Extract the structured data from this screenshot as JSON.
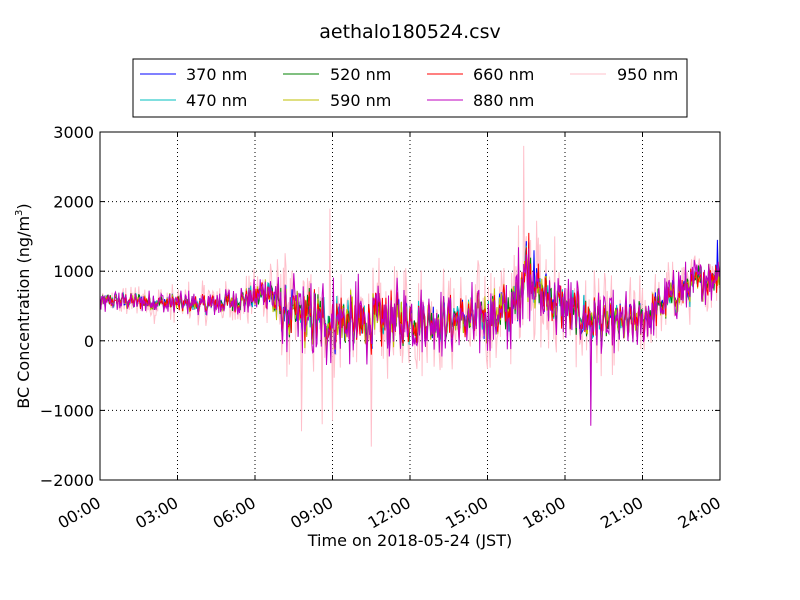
{
  "chart_data": {
    "type": "line",
    "title": "aethalo180524.csv",
    "xlabel": "Time on 2018-05-24 (JST)",
    "ylabel_main": "BC Concentration (ng/m",
    "ylabel_sup": "3",
    "ylabel_close": ")",
    "x_unit": "hours",
    "xlim": [
      0,
      24
    ],
    "ylim": [
      -2000,
      3000
    ],
    "x_ticks": [
      0,
      3,
      6,
      9,
      12,
      15,
      18,
      21,
      24
    ],
    "x_tick_labels": [
      "00:00",
      "03:00",
      "06:00",
      "09:00",
      "12:00",
      "15:00",
      "18:00",
      "21:00",
      "24:00"
    ],
    "y_ticks": [
      -2000,
      -1000,
      0,
      1000,
      2000,
      3000
    ],
    "y_tick_labels": [
      "−2000",
      "−1000",
      "0",
      "1000",
      "2000",
      "3000"
    ],
    "grid": true,
    "legend_placement": "top-center",
    "series": [
      {
        "name": "370 nm",
        "color": "#0000ff"
      },
      {
        "name": "470 nm",
        "color": "#00bfbf"
      },
      {
        "name": "520 nm",
        "color": "#008000"
      },
      {
        "name": "590 nm",
        "color": "#bfbf00"
      },
      {
        "name": "660 nm",
        "color": "#ff0000"
      },
      {
        "name": "880 nm",
        "color": "#bf00bf"
      },
      {
        "name": "950 nm",
        "color": "#ffc0cb"
      }
    ],
    "envelope": {
      "x": [
        0,
        1,
        2,
        3,
        4,
        5,
        6,
        6.5,
        7,
        8,
        9,
        10,
        11,
        12,
        13,
        14,
        15,
        16,
        16.5,
        17,
        18,
        19,
        20,
        21,
        22,
        23,
        24
      ],
      "level": [
        550,
        580,
        560,
        540,
        520,
        560,
        620,
        750,
        400,
        320,
        280,
        250,
        300,
        300,
        280,
        300,
        350,
        450,
        1100,
        700,
        450,
        300,
        220,
        300,
        600,
        800,
        1000
      ],
      "spread": [
        130,
        130,
        140,
        150,
        160,
        170,
        190,
        300,
        420,
        480,
        500,
        500,
        440,
        400,
        380,
        380,
        420,
        450,
        500,
        450,
        380,
        380,
        350,
        330,
        300,
        300,
        300
      ]
    },
    "spikes": [
      {
        "x": 7.1,
        "y": 1050,
        "series": "950 nm"
      },
      {
        "x": 7.8,
        "y": -1300,
        "series": "950 nm"
      },
      {
        "x": 8.6,
        "y": -1200,
        "series": "950 nm"
      },
      {
        "x": 8.9,
        "y": 1900,
        "series": "950 nm"
      },
      {
        "x": 9.0,
        "y": -1150,
        "series": "950 nm"
      },
      {
        "x": 10.5,
        "y": -1520,
        "series": "950 nm"
      },
      {
        "x": 16.4,
        "y": 2800,
        "series": "950 nm"
      },
      {
        "x": 16.6,
        "y": 1550,
        "series": "660 nm"
      },
      {
        "x": 16.8,
        "y": 1300,
        "series": "370 nm"
      },
      {
        "x": 17.6,
        "y": 1500,
        "series": "950 nm"
      },
      {
        "x": 19.0,
        "y": -1220,
        "series": "880 nm"
      },
      {
        "x": 23.9,
        "y": 1450,
        "series": "370 nm"
      }
    ]
  }
}
